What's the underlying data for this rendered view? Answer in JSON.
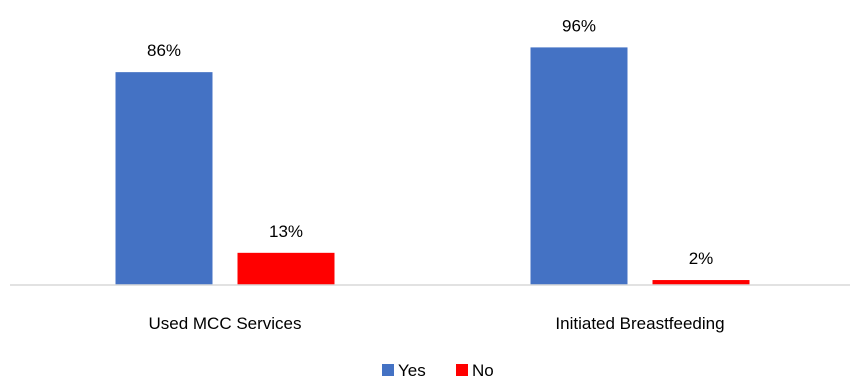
{
  "chart_data": {
    "type": "bar",
    "title": "",
    "xlabel": "",
    "ylabel": "",
    "categories": [
      "Used MCC Services",
      "Initiated Breastfeeding"
    ],
    "series": [
      {
        "name": "Yes",
        "color": "#4472C4",
        "values": [
          86,
          96
        ],
        "labels": [
          "86%",
          "96%"
        ]
      },
      {
        "name": "No",
        "color": "#FF0000",
        "values": [
          13,
          2
        ],
        "labels": [
          "13%",
          "2%"
        ]
      }
    ],
    "ylim": [
      0,
      100
    ],
    "unit": "%",
    "grid": false,
    "legend_position": "bottom"
  }
}
